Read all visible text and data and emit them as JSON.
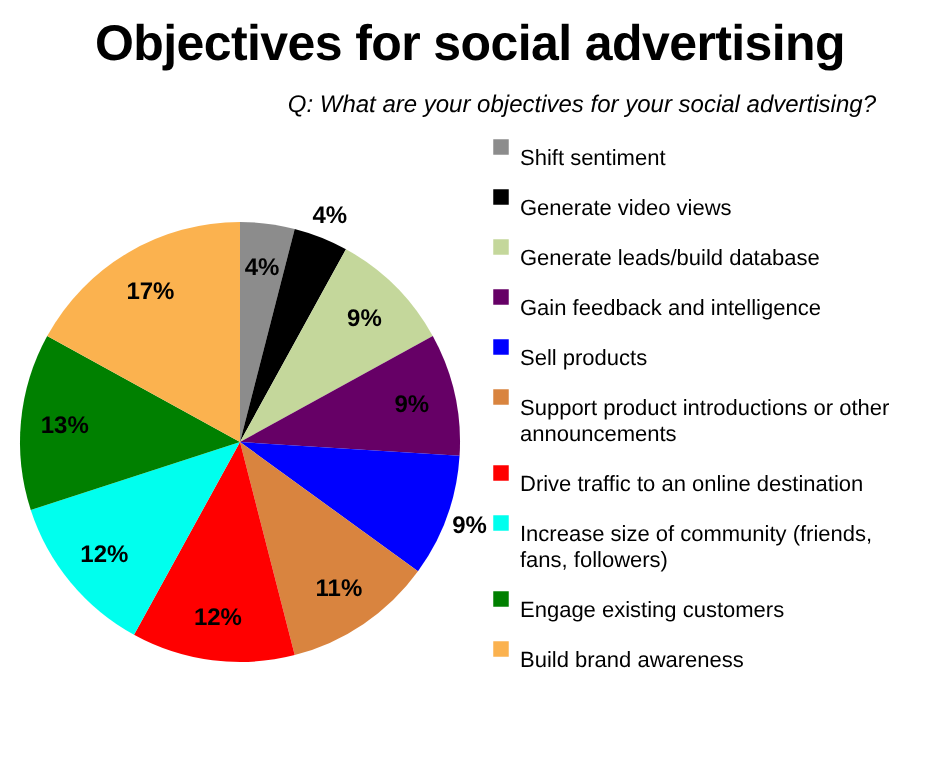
{
  "chart_data": {
    "type": "pie",
    "title": "Objectives for social advertising",
    "subtitle": "Q: What are your objectives for your social advertising?",
    "categories": [
      "Shift sentiment",
      "Generate video views",
      "Generate leads/build database",
      "Gain feedback and intelligence",
      "Sell products",
      "Support product introductions or other announcements",
      "Drive traffic to an online destination",
      "Increase size of community (friends, fans, followers)",
      "Engage existing customers",
      "Build brand awareness"
    ],
    "values": [
      4,
      4,
      9,
      9,
      9,
      11,
      12,
      12,
      13,
      17
    ],
    "value_labels": [
      "4%",
      "4%",
      "9%",
      "9%",
      "9%",
      "11%",
      "12%",
      "12%",
      "13%",
      "17%"
    ],
    "colors": [
      "#8c8c8c",
      "#000000",
      "#c4d79b",
      "#660066",
      "#0000ff",
      "#d9843f",
      "#ff0000",
      "#00ffee",
      "#008000",
      "#fbb24f"
    ],
    "legend": "right"
  }
}
